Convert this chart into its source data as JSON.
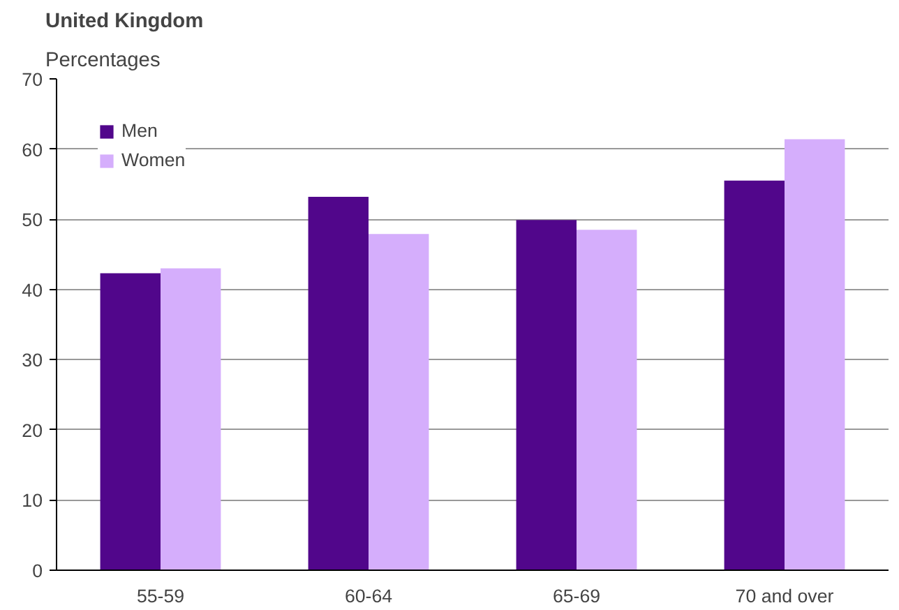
{
  "chart_data": {
    "type": "bar",
    "title": "United Kingdom",
    "subtitle": "Percentages",
    "categories": [
      "55-59",
      "60-64",
      "65-69",
      "70 and over"
    ],
    "series": [
      {
        "name": "Men",
        "color": "#51068b",
        "values": [
          42.3,
          53.2,
          49.9,
          55.5
        ]
      },
      {
        "name": "Women",
        "color": "#d5aefc",
        "values": [
          43.0,
          47.9,
          48.5,
          61.4
        ]
      }
    ],
    "ylim": [
      0,
      70
    ],
    "yticks": [
      0,
      10,
      20,
      30,
      40,
      50,
      60,
      70
    ],
    "grid": "y",
    "legend": "top left"
  }
}
